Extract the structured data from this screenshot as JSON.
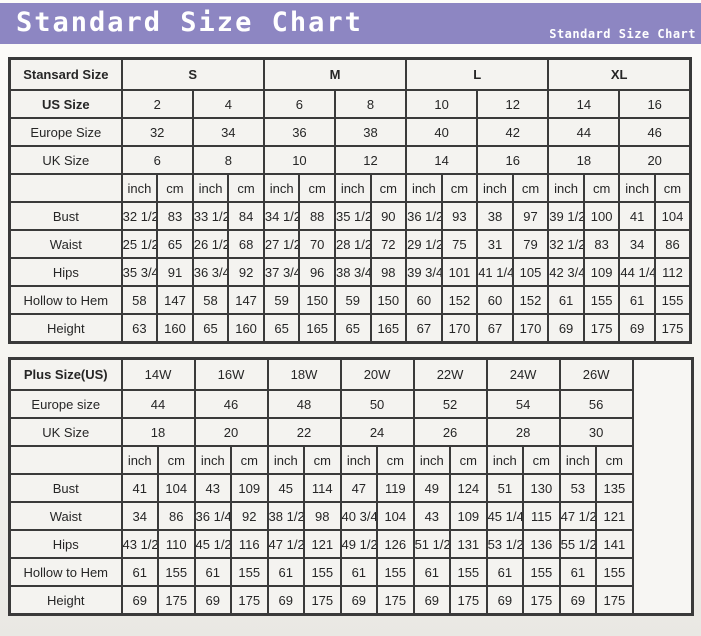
{
  "header": {
    "title": "Standard Size Chart",
    "subtitle": "Standard Size Chart",
    "bg_color": "#8d86c2",
    "text_color": "#ffffff"
  },
  "table_border_color": "#3a3a3a",
  "tables": [
    {
      "corner_label": "Stansard Size",
      "groups_bold": true,
      "groups": [
        {
          "label": "S",
          "span": 4
        },
        {
          "label": "M",
          "span": 4
        },
        {
          "label": "L",
          "span": 4
        },
        {
          "label": "XL",
          "span": 4
        }
      ],
      "size_rows": [
        {
          "label": "US Size",
          "bold": true,
          "values": [
            "2",
            "4",
            "6",
            "8",
            "10",
            "12",
            "14",
            "16"
          ]
        },
        {
          "label": "Europe Size",
          "bold": false,
          "values": [
            "32",
            "34",
            "36",
            "38",
            "40",
            "42",
            "44",
            "46"
          ]
        },
        {
          "label": "UK Size",
          "bold": false,
          "values": [
            "6",
            "8",
            "10",
            "12",
            "14",
            "16",
            "18",
            "20"
          ]
        }
      ],
      "unit_labels": [
        "inch",
        "cm"
      ],
      "unit_pairs": 8,
      "measure_rows": [
        {
          "label": "Bust",
          "values": [
            "32 1/2",
            "83",
            "33 1/2",
            "84",
            "34 1/2",
            "88",
            "35 1/2",
            "90",
            "36 1/2",
            "93",
            "38",
            "97",
            "39 1/2",
            "100",
            "41",
            "104"
          ]
        },
        {
          "label": "Waist",
          "values": [
            "25 1/2",
            "65",
            "26 1/2",
            "68",
            "27 1/2",
            "70",
            "28 1/2",
            "72",
            "29 1/2",
            "75",
            "31",
            "79",
            "32 1/2",
            "83",
            "34",
            "86"
          ]
        },
        {
          "label": "Hips",
          "values": [
            "35 3/4",
            "91",
            "36 3/4",
            "92",
            "37 3/4",
            "96",
            "38 3/4",
            "98",
            "39 3/4",
            "101",
            "41 1/4",
            "105",
            "42 3/4",
            "109",
            "44 1/4",
            "112"
          ]
        },
        {
          "label": "Hollow to Hem",
          "values": [
            "58",
            "147",
            "58",
            "147",
            "59",
            "150",
            "59",
            "150",
            "60",
            "152",
            "60",
            "152",
            "61",
            "155",
            "61",
            "155"
          ]
        },
        {
          "label": "Height",
          "values": [
            "63",
            "160",
            "65",
            "160",
            "65",
            "165",
            "65",
            "165",
            "67",
            "170",
            "67",
            "170",
            "69",
            "175",
            "69",
            "175"
          ]
        }
      ],
      "label_col_width": 112,
      "narrow_cols": 16,
      "narrow_col_width": 35.5,
      "trailing_blank_col_width": 0
    },
    {
      "corner_label": "Plus Size(US)",
      "groups_bold": false,
      "groups": [
        {
          "label": "14W",
          "span": 2
        },
        {
          "label": "16W",
          "span": 2
        },
        {
          "label": "18W",
          "span": 2
        },
        {
          "label": "20W",
          "span": 2
        },
        {
          "label": "22W",
          "span": 2
        },
        {
          "label": "24W",
          "span": 2
        },
        {
          "label": "26W",
          "span": 2
        }
      ],
      "size_rows": [
        {
          "label": "Europe size",
          "bold": false,
          "values": [
            "44",
            "46",
            "48",
            "50",
            "52",
            "54",
            "56"
          ]
        },
        {
          "label": "UK Size",
          "bold": false,
          "values": [
            "18",
            "20",
            "22",
            "24",
            "26",
            "28",
            "30"
          ]
        }
      ],
      "unit_labels": [
        "inch",
        "cm"
      ],
      "unit_pairs": 7,
      "measure_rows": [
        {
          "label": "Bust",
          "values": [
            "41",
            "104",
            "43",
            "109",
            "45",
            "114",
            "47",
            "119",
            "49",
            "124",
            "51",
            "130",
            "53",
            "135"
          ]
        },
        {
          "label": "Waist",
          "values": [
            "34",
            "86",
            "36 1/4",
            "92",
            "38 1/2",
            "98",
            "40 3/4",
            "104",
            "43",
            "109",
            "45 1/4",
            "115",
            "47 1/2",
            "121"
          ]
        },
        {
          "label": "Hips",
          "values": [
            "43 1/2",
            "110",
            "45 1/2",
            "116",
            "47 1/2",
            "121",
            "49 1/2",
            "126",
            "51 1/2",
            "131",
            "53 1/2",
            "136",
            "55 1/2",
            "141"
          ]
        },
        {
          "label": "Hollow to Hem",
          "values": [
            "61",
            "155",
            "61",
            "155",
            "61",
            "155",
            "61",
            "155",
            "61",
            "155",
            "61",
            "155",
            "61",
            "155"
          ]
        },
        {
          "label": "Height",
          "values": [
            "69",
            "175",
            "69",
            "175",
            "69",
            "175",
            "69",
            "175",
            "69",
            "175",
            "69",
            "175",
            "69",
            "175"
          ]
        }
      ],
      "label_col_width": 112,
      "narrow_cols": 14,
      "narrow_col_width": 36.5,
      "trailing_blank_col_width": 60
    }
  ]
}
